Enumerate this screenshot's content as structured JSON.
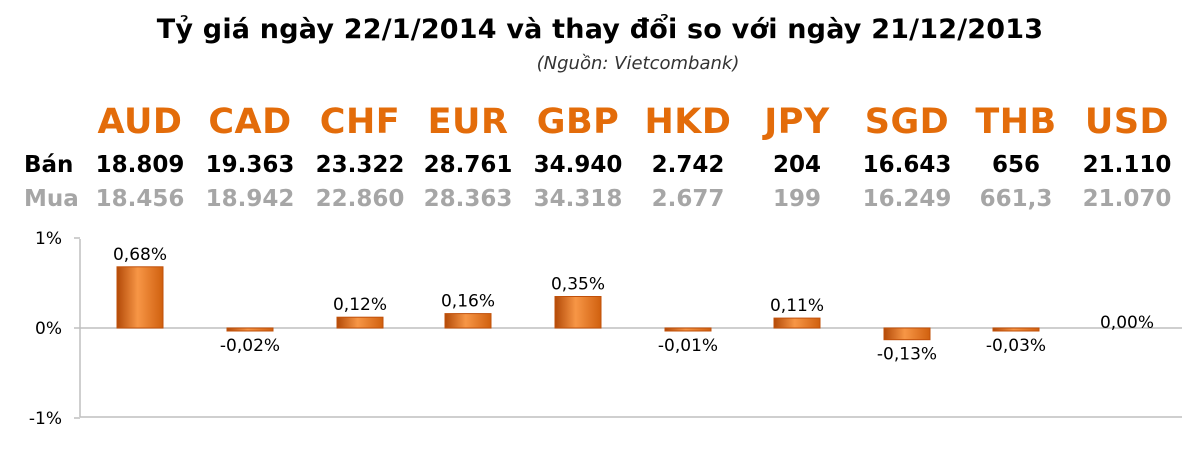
{
  "title": "Tỷ giá ngày 22/1/2014 và thay đổi so với ngày 21/12/2013",
  "subtitle": "(Nguồn: Vietcombank)",
  "rows": {
    "sell_label": "Bán",
    "buy_label": "Mua"
  },
  "currencies": [
    {
      "code": "AUD",
      "sell": "18.809",
      "buy": "18.456"
    },
    {
      "code": "CAD",
      "sell": "19.363",
      "buy": "18.942"
    },
    {
      "code": "CHF",
      "sell": "23.322",
      "buy": "22.860"
    },
    {
      "code": "EUR",
      "sell": "28.761",
      "buy": "28.363"
    },
    {
      "code": "GBP",
      "sell": "34.940",
      "buy": "34.318"
    },
    {
      "code": "HKD",
      "sell": "2.742",
      "buy": "2.677"
    },
    {
      "code": "JPY",
      "sell": "204",
      "buy": "199"
    },
    {
      "code": "SGD",
      "sell": "16.643",
      "buy": "16.249"
    },
    {
      "code": "THB",
      "sell": "656",
      "buy": "661,3"
    },
    {
      "code": "USD",
      "sell": "21.110",
      "buy": "21.070"
    }
  ],
  "colors": {
    "code": "#e36c0a",
    "bar_light": "#f79646",
    "bar_dark": "#c0500a",
    "buy_text": "#a6a6a6",
    "axis": "#bfbfbf"
  },
  "chart_data": {
    "type": "bar",
    "categories": [
      "AUD",
      "CAD",
      "CHF",
      "EUR",
      "GBP",
      "HKD",
      "JPY",
      "SGD",
      "THB",
      "USD"
    ],
    "values": [
      0.68,
      -0.02,
      0.12,
      0.16,
      0.35,
      -0.01,
      0.11,
      -0.13,
      -0.03,
      0.0
    ],
    "data_labels": [
      "0,68%",
      "-0,02%",
      "0,12%",
      "0,16%",
      "0,35%",
      "-0,01%",
      "0,11%",
      "-0,13%",
      "-0,03%",
      "0,00%"
    ],
    "y_ticks": [
      1,
      0,
      -1
    ],
    "y_tick_labels": [
      "1%",
      "0%",
      "-1%"
    ],
    "ylim": [
      -1,
      1
    ],
    "ylabel": "",
    "xlabel": "",
    "grid": false
  }
}
